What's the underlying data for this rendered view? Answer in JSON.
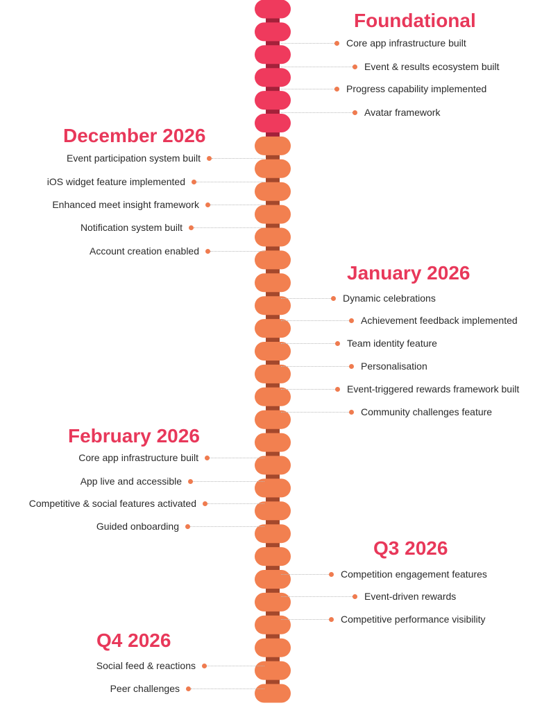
{
  "colors": {
    "heading": "#e8385a",
    "dot": "#ef7b4f",
    "pill_early": "#ef3a5d",
    "pill_late": "#f28050",
    "spine_early": "#a3213a",
    "spine_late": "#a4482c",
    "connector": "#b9b9b9",
    "text": "#2a2a2a"
  },
  "sections": [
    {
      "title": "Foundational",
      "side": "right",
      "items": [
        "Core app infrastructure built",
        "Event & results ecosystem built",
        "Progress capability implemented",
        "Avatar framework"
      ]
    },
    {
      "title": "December 2026",
      "side": "left",
      "items": [
        "Event participation system built",
        "iOS widget feature implemented",
        "Enhanced meet insight framework",
        "Notification system built",
        "Account creation enabled"
      ]
    },
    {
      "title": "January 2026",
      "side": "right",
      "items": [
        "Dynamic celebrations",
        "Achievement feedback implemented",
        "Team identity feature",
        "Personalisation",
        "Event-triggered rewards framework built",
        "Community challenges feature"
      ]
    },
    {
      "title": "February 2026",
      "side": "left",
      "items": [
        "Core app infrastructure built",
        "App live and accessible",
        "Competitive & social features activated",
        "Guided onboarding"
      ]
    },
    {
      "title": "Q3 2026",
      "side": "right",
      "items": [
        "Competition engagement features",
        "Event-driven rewards",
        "Competitive performance visibility"
      ]
    },
    {
      "title": "Q4 2026",
      "side": "left",
      "items": [
        "Social feed & reactions",
        "Peer challenges"
      ]
    }
  ]
}
